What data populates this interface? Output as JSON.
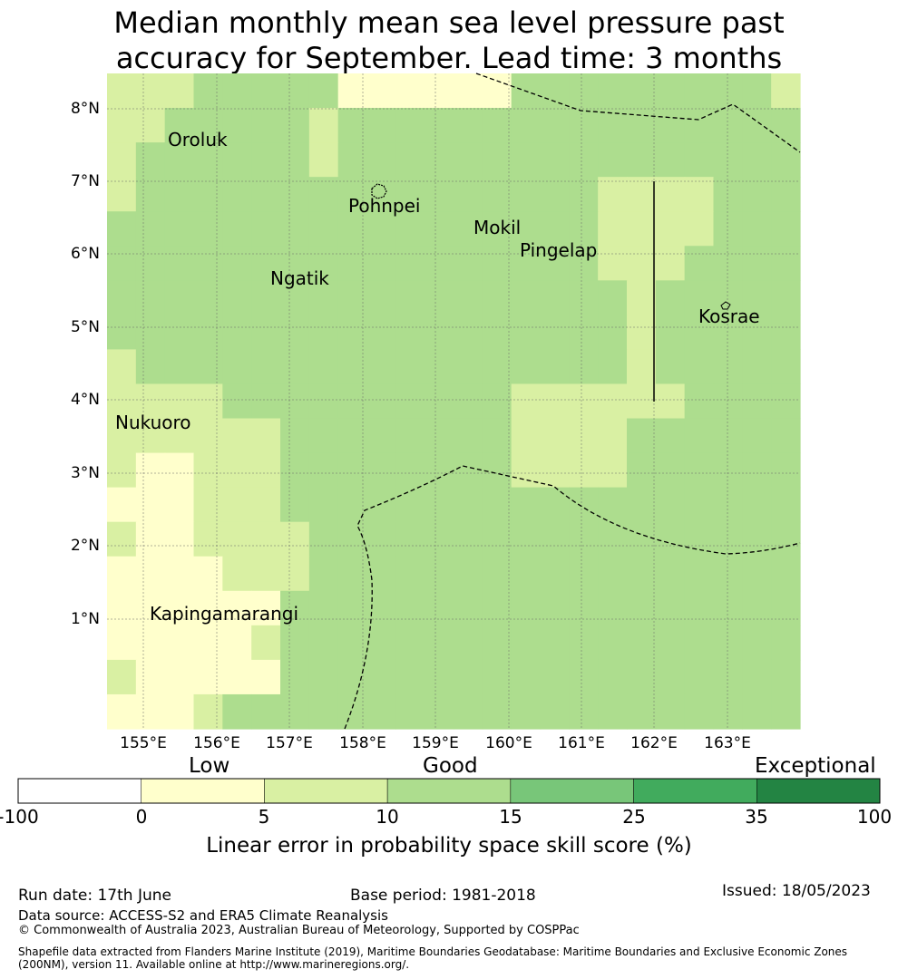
{
  "title": {
    "line1": "Median monthly mean sea level pressure past",
    "line2": "accuracy for September. Lead time: 3 months"
  },
  "map": {
    "lat_labels": [
      "8°N",
      "7°N",
      "6°N",
      "5°N",
      "4°N",
      "3°N",
      "2°N",
      "1°N"
    ],
    "lon_labels": [
      "155°E",
      "156°E",
      "157°E",
      "158°E",
      "159°E",
      "160°E",
      "161°E",
      "162°E",
      "163°E"
    ],
    "places": [
      "Oroluk",
      "Pohnpei",
      "Mokil",
      "Pingelap",
      "Ngatik",
      "Kosrae",
      "Nukuoro",
      "Kapingamarangi"
    ],
    "grid_rows": [
      "cccbbbbbddddddbbbbbbbbbc",
      "ccbbbbbcbbbbbbbbbbbbbbbb",
      "cbbbbbbcbbbbbbbbbbbbbbbb",
      "cbbbbbbbbbbbbbbbbccccbbb",
      "bbbbbbbbbbbbbbbbbccccbbb",
      "bbbbbbbbbbbbbbbbbcccbbbb",
      "bbbbbbbbbbbbbbbbbbcbbbbb",
      "bbbbbbbbbbbbbbbbbbcbbbbb",
      "cbbbbbbbbbbbbbbbbbcbbbbb",
      "ccccbbbbbbbbbbccccccbbbb",
      "ccccccbbbbbbbbccccbbbbbb",
      "cddcccbbbbbbbbccccbbbbbb",
      "dddcccbbbbbbbbbbbbbbbbbb",
      "cddccccbbbbbbbbbbbbbbbbb",
      "ddddcccbbbbbbbbbbbbbbbbb",
      "ddddddbbbbbbbbbbbbbbbbbb",
      "dddddcbbbbbbbbbbbbbbbbbb",
      "cdddddbbbbbbbbbbbbbbbbbb",
      "dddcbbbbbbbbbbbbbbbbbbbb"
    ],
    "grid_colors": {
      "d": "#ffffcc",
      "c": "#d9f0a3",
      "b": "#addd8e"
    }
  },
  "colorbar": {
    "categories": [
      "Low",
      "Good",
      "Exceptional"
    ],
    "ticks": [
      "-100",
      "0",
      "5",
      "10",
      "15",
      "25",
      "35",
      "100"
    ],
    "colors": [
      "#ffffff",
      "#ffffcc",
      "#d9f0a3",
      "#addd8e",
      "#78c679",
      "#41ab5d",
      "#238443"
    ],
    "label": "Linear error in probability space skill score (%)"
  },
  "footer": {
    "run_date": "Run date: 17th June",
    "base_period": "Base period: 1981-2018",
    "issued": "Issued: 18/05/2023",
    "data_source": "Data source: ACCESS-S2 and ERA5 Climate Reanalysis",
    "copyright": "© Commonwealth of Australia 2023, Australian Bureau of Meteorology, Supported by COSPPac",
    "shapefile_line1": "Shapefile data extracted from Flanders Marine Institute (2019), Maritime Boundaries Geodatabase: Maritime Boundaries and Exclusive Economic Zones",
    "shapefile_line2": "(200NM), version 11. Available online at http://www.marineregions.org/."
  }
}
